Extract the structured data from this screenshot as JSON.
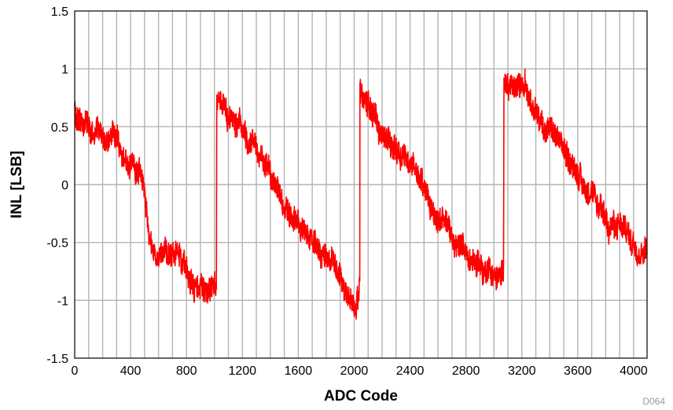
{
  "chart_data": {
    "type": "line",
    "title": "",
    "xlabel": "ADC Code",
    "ylabel": "INL [LSB]",
    "xlim": [
      0,
      4096
    ],
    "ylim": [
      -1.5,
      1.5
    ],
    "x_ticks": [
      0,
      400,
      800,
      1200,
      1600,
      2000,
      2400,
      2800,
      3200,
      3600,
      4000
    ],
    "x_tick_labels": [
      "0",
      "400",
      "800",
      "1200",
      "1600",
      "2000",
      "2400",
      "2800",
      "3200",
      "3600",
      "4000"
    ],
    "y_ticks": [
      -1.5,
      -1,
      -0.5,
      0,
      0.5,
      1,
      1.5
    ],
    "y_tick_labels": [
      "-1.5",
      "-1",
      "-0.5",
      "0",
      "0.5",
      "1",
      "1.5"
    ],
    "x_minor_grid_step": 100,
    "grid": true,
    "legend": "none",
    "figure_id": "D064",
    "series": [
      {
        "color": "#ff0000",
        "x": [
          0,
          50,
          100,
          150,
          200,
          250,
          300,
          350,
          400,
          450,
          500,
          550,
          600,
          650,
          700,
          750,
          800,
          850,
          900,
          950,
          1000,
          1015,
          1016,
          1050,
          1100,
          1150,
          1200,
          1250,
          1300,
          1350,
          1400,
          1450,
          1500,
          1550,
          1600,
          1650,
          1700,
          1750,
          1800,
          1850,
          1900,
          1950,
          2000,
          2030,
          2040,
          2041,
          2080,
          2120,
          2160,
          2200,
          2250,
          2300,
          2350,
          2400,
          2450,
          2500,
          2550,
          2600,
          2650,
          2700,
          2750,
          2800,
          2850,
          2900,
          2950,
          3000,
          3050,
          3070,
          3071,
          3100,
          3150,
          3200,
          3250,
          3300,
          3350,
          3400,
          3450,
          3500,
          3550,
          3600,
          3650,
          3700,
          3750,
          3800,
          3850,
          3900,
          3950,
          4000,
          4050,
          4095
        ],
        "y": [
          0.62,
          0.55,
          0.48,
          0.45,
          0.43,
          0.42,
          0.4,
          0.25,
          0.18,
          0.1,
          -0.1,
          -0.55,
          -0.62,
          -0.6,
          -0.6,
          -0.62,
          -0.72,
          -0.85,
          -0.92,
          -0.95,
          -0.9,
          -0.85,
          0.75,
          0.72,
          0.62,
          0.55,
          0.45,
          0.4,
          0.3,
          0.2,
          0.1,
          -0.05,
          -0.2,
          -0.3,
          -0.35,
          -0.42,
          -0.5,
          -0.58,
          -0.62,
          -0.7,
          -0.8,
          -0.95,
          -1.02,
          -1.0,
          -0.8,
          0.85,
          0.72,
          0.62,
          0.55,
          0.45,
          0.38,
          0.32,
          0.28,
          0.2,
          0.1,
          -0.05,
          -0.2,
          -0.28,
          -0.35,
          -0.45,
          -0.55,
          -0.6,
          -0.65,
          -0.7,
          -0.75,
          -0.78,
          -0.8,
          -0.8,
          0.9,
          0.88,
          0.85,
          0.9,
          0.78,
          0.6,
          0.52,
          0.45,
          0.38,
          0.3,
          0.2,
          0.1,
          0.0,
          -0.12,
          -0.2,
          -0.3,
          -0.35,
          -0.38,
          -0.42,
          -0.5,
          -0.58,
          -0.5
        ]
      }
    ]
  }
}
